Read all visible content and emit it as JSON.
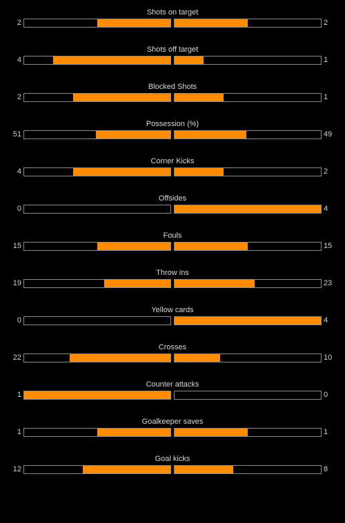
{
  "colors": {
    "background": "#000000",
    "bar_fill": "#ff8c00",
    "bar_border": "#8a8a8a",
    "text": "#cfcfcf"
  },
  "stats": [
    {
      "label": "Shots on target",
      "home": "2",
      "away": "2",
      "home_share": 0.5,
      "away_share": 0.5
    },
    {
      "label": "Shots off target",
      "home": "4",
      "away": "1",
      "home_share": 0.8,
      "away_share": 0.2
    },
    {
      "label": "Blocked Shots",
      "home": "2",
      "away": "1",
      "home_share": 0.667,
      "away_share": 0.333
    },
    {
      "label": "Possession (%)",
      "home": "51",
      "away": "49",
      "home_share": 0.51,
      "away_share": 0.49
    },
    {
      "label": "Corner Kicks",
      "home": "4",
      "away": "2",
      "home_share": 0.667,
      "away_share": 0.333
    },
    {
      "label": "Offsides",
      "home": "0",
      "away": "4",
      "home_share": 0,
      "away_share": 1
    },
    {
      "label": "Fouls",
      "home": "15",
      "away": "15",
      "home_share": 0.5,
      "away_share": 0.5
    },
    {
      "label": "Throw ins",
      "home": "19",
      "away": "23",
      "home_share": 0.452,
      "away_share": 0.548
    },
    {
      "label": "Yellow cards",
      "home": "0",
      "away": "4",
      "home_share": 0,
      "away_share": 1
    },
    {
      "label": "Crosses",
      "home": "22",
      "away": "10",
      "home_share": 0.6875,
      "away_share": 0.3125
    },
    {
      "label": "Counter attacks",
      "home": "1",
      "away": "0",
      "home_share": 1,
      "away_share": 0
    },
    {
      "label": "Goalkeeper saves",
      "home": "1",
      "away": "1",
      "home_share": 0.5,
      "away_share": 0.5
    },
    {
      "label": "Goal kicks",
      "home": "12",
      "away": "8",
      "home_share": 0.6,
      "away_share": 0.4
    }
  ]
}
